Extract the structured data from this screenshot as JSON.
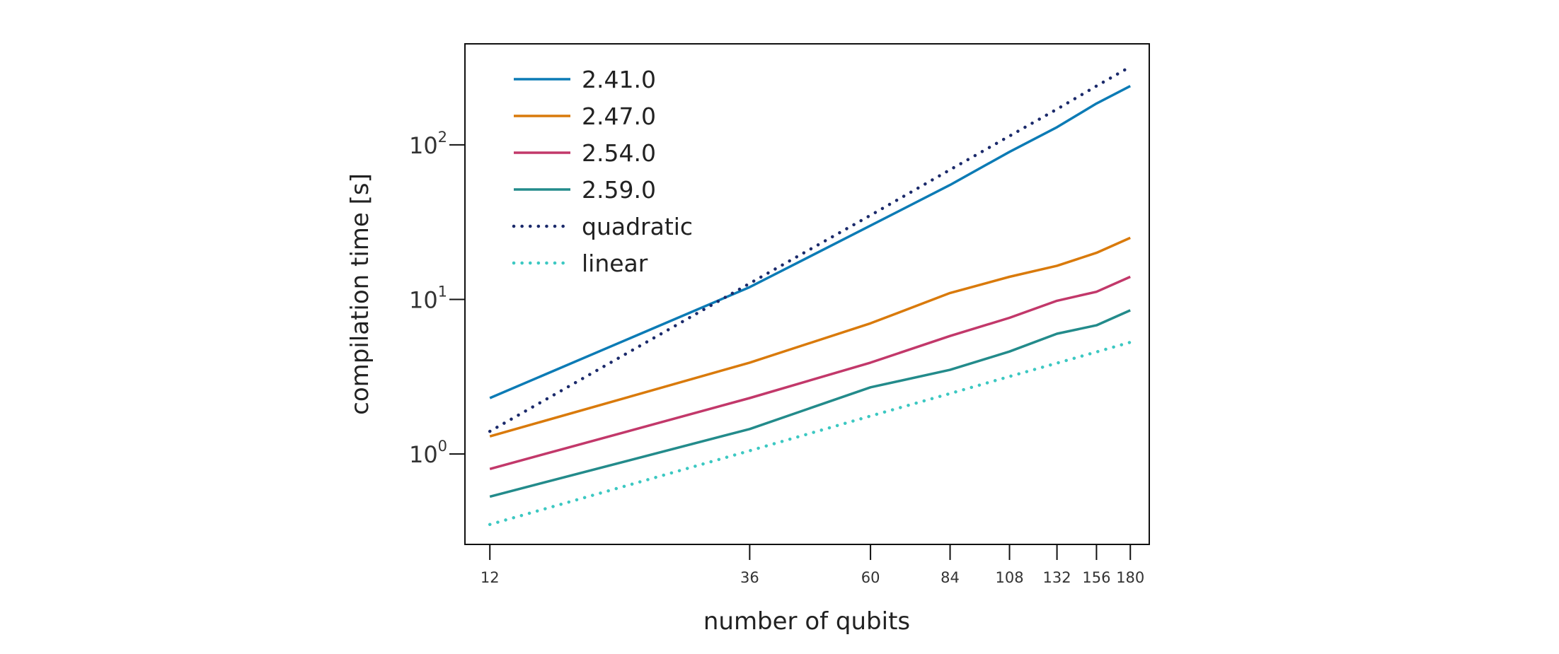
{
  "chart_data": {
    "type": "line",
    "title": "",
    "xlabel": "number of qubits",
    "ylabel": "compilation time [s]",
    "x": [
      12,
      36,
      60,
      84,
      108,
      132,
      156,
      180
    ],
    "x_tick_labels": [
      "12",
      "36",
      "60",
      "84",
      "108",
      "132",
      "156",
      "180"
    ],
    "y_ticks": [
      1,
      10,
      100
    ],
    "y_tick_labels": [
      {
        "base": "10",
        "exp": "0"
      },
      {
        "base": "10",
        "exp": "1"
      },
      {
        "base": "10",
        "exp": "2"
      }
    ],
    "x_scale": "log",
    "y_scale": "log",
    "xlim": [
      10.8,
      195
    ],
    "ylim": [
      0.26,
      450
    ],
    "grid": false,
    "legend_position": "top-left",
    "series": [
      {
        "name": "2.41.0",
        "style": "solid",
        "color": "#0c7bb5",
        "values": [
          2.3,
          12,
          30,
          55,
          90,
          130,
          185,
          240
        ]
      },
      {
        "name": "2.47.0",
        "style": "solid",
        "color": "#d97a0b",
        "values": [
          1.3,
          3.9,
          7.0,
          11,
          14,
          16.5,
          20,
          25
        ]
      },
      {
        "name": "2.54.0",
        "style": "solid",
        "color": "#c2386a",
        "values": [
          0.8,
          2.3,
          3.9,
          5.8,
          7.6,
          9.8,
          11.2,
          14
        ]
      },
      {
        "name": "2.59.0",
        "style": "solid",
        "color": "#238b8b",
        "values": [
          0.53,
          1.45,
          2.7,
          3.5,
          4.6,
          6.0,
          6.8,
          8.5
        ]
      },
      {
        "name": "quadratic",
        "style": "dotted",
        "color": "#1b2a6b",
        "values": [
          1.4,
          12.7,
          35,
          69,
          114,
          170,
          240,
          320
        ]
      },
      {
        "name": "linear",
        "style": "dotted",
        "color": "#3cc8c2",
        "values": [
          0.35,
          1.05,
          1.76,
          2.46,
          3.17,
          3.87,
          4.57,
          5.28
        ]
      }
    ]
  }
}
